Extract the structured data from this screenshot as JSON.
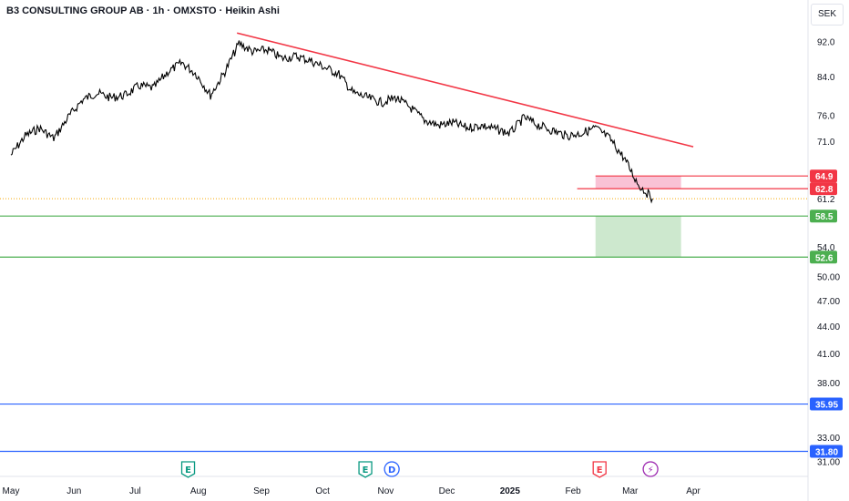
{
  "header": {
    "title": "B3 CONSULTING GROUP AB · 1h · OMXSTO · Heikin Ashi",
    "currency": "SEK"
  },
  "chart_data": {
    "type": "candlestick-line",
    "title": "B3 CONSULTING GROUP AB · 1h · OMXSTO · Heikin Ashi",
    "y_scale": "log",
    "ylim": [
      30.3,
      100
    ],
    "y_ticks": [
      31.0,
      33.0,
      38.0,
      41.0,
      44.0,
      47.0,
      50.0,
      54.0,
      61.2,
      71.0,
      76.0,
      84.0,
      92.0
    ],
    "x_ticks": [
      "May",
      "Jun",
      "Jul",
      "Aug",
      "Sep",
      "Oct",
      "Nov",
      "Dec",
      "2025",
      "Feb",
      "Mar",
      "Apr"
    ],
    "x_bold_tick": "2025",
    "price_series": {
      "name": "Heikin Ashi",
      "color": "#000000",
      "x": [
        "2024-05-01",
        "2024-05-08",
        "2024-05-15",
        "2024-05-22",
        "2024-05-29",
        "2024-06-05",
        "2024-06-12",
        "2024-06-19",
        "2024-06-26",
        "2024-07-03",
        "2024-07-10",
        "2024-07-17",
        "2024-07-24",
        "2024-07-31",
        "2024-08-07",
        "2024-08-14",
        "2024-08-21",
        "2024-08-28",
        "2024-09-04",
        "2024-09-11",
        "2024-09-18",
        "2024-09-25",
        "2024-10-02",
        "2024-10-09",
        "2024-10-16",
        "2024-10-23",
        "2024-10-30",
        "2024-11-06",
        "2024-11-13",
        "2024-11-20",
        "2024-11-27",
        "2024-12-04",
        "2024-12-11",
        "2024-12-18",
        "2025-01-01",
        "2025-01-08",
        "2025-01-15",
        "2025-01-22",
        "2025-01-29",
        "2025-02-05",
        "2025-02-12",
        "2025-02-19",
        "2025-02-26",
        "2025-03-05",
        "2025-03-12"
      ],
      "y": [
        68.5,
        72.0,
        73.5,
        71.5,
        75.5,
        79.0,
        80.5,
        79.5,
        80.0,
        82.0,
        81.5,
        85.0,
        87.0,
        84.5,
        80.0,
        85.0,
        91.5,
        89.5,
        90.0,
        88.0,
        88.5,
        87.5,
        86.0,
        84.5,
        80.5,
        79.5,
        78.5,
        79.5,
        77.5,
        75.0,
        74.0,
        74.5,
        73.5,
        74.0,
        72.5,
        75.5,
        74.0,
        73.0,
        72.0,
        72.5,
        73.5,
        71.5,
        68.0,
        63.5,
        61.2
      ]
    },
    "trendline": {
      "color": "#f23645",
      "from": [
        "2024-08-20",
        94.0
      ],
      "to": [
        "2025-04-01",
        70.0
      ]
    },
    "levels": [
      {
        "value": 64.9,
        "label": "64.9",
        "color": "#f23645",
        "from": "2025-02-12"
      },
      {
        "value": 62.8,
        "label": "62.8",
        "color": "#f23645",
        "from": "2025-02-03"
      },
      {
        "value": 58.5,
        "label": "58.5",
        "color": "#4caf50",
        "from": "2024-04-20"
      },
      {
        "value": 52.6,
        "label": "52.6",
        "color": "#4caf50",
        "from": "2024-04-20"
      },
      {
        "value": 35.95,
        "label": "35.95",
        "color": "#2962ff",
        "from": "2024-04-20"
      },
      {
        "value": 31.8,
        "label": "31.80",
        "color": "#2962ff",
        "from": "2024-04-20"
      }
    ],
    "current_price": {
      "value": 61.2,
      "color": "#f7a600"
    },
    "zones": [
      {
        "name": "supply-zone",
        "from": "2025-02-12",
        "to": "2025-03-26",
        "y_low": 62.8,
        "y_high": 64.9,
        "color": "#f8bbd0"
      },
      {
        "name": "target-zone",
        "from": "2025-02-12",
        "to": "2025-03-26",
        "y_low": 52.6,
        "y_high": 58.5,
        "color": "#c8e6c9"
      }
    ],
    "events": [
      {
        "date": "2024-07-27",
        "label": "E",
        "type": "earnings",
        "color": "#089981"
      },
      {
        "date": "2024-10-22",
        "label": "E",
        "type": "earnings",
        "color": "#089981"
      },
      {
        "date": "2024-11-04",
        "label": "D",
        "type": "dividend",
        "color": "#2962ff"
      },
      {
        "date": "2025-02-14",
        "label": "E",
        "type": "earnings",
        "color": "#f23645"
      },
      {
        "date": "2025-03-11",
        "label": "⚡",
        "type": "split",
        "color": "#9c27b0"
      }
    ]
  }
}
